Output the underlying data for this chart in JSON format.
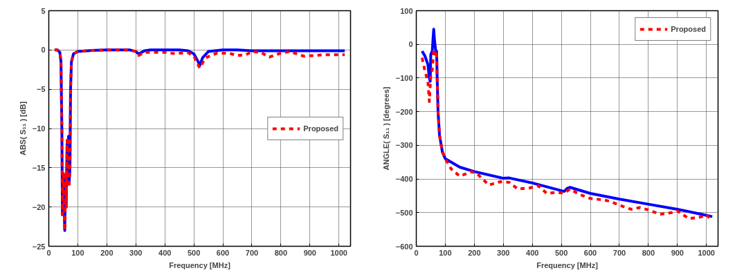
{
  "chart_data": [
    {
      "type": "line",
      "xlabel": "Frequency [MHz]",
      "ylabel": "ABS( S₁₁ ) [dB]",
      "xlim": [
        0,
        1040
      ],
      "ylim": [
        -25,
        5
      ],
      "xticks": [
        0,
        100,
        200,
        300,
        400,
        500,
        600,
        700,
        800,
        900,
        1000
      ],
      "yticks": [
        -25,
        -20,
        -15,
        -10,
        -5,
        0,
        5
      ],
      "grid": true,
      "legend": "right",
      "marker": "none",
      "series": [
        {
          "color": "#0000ff",
          "line_style": "solid",
          "x": [
            20,
            30,
            38,
            42,
            45,
            47,
            50,
            53,
            55,
            58,
            60,
            63,
            66,
            68,
            70,
            73,
            75,
            78,
            85,
            100,
            150,
            200,
            280,
            300,
            310,
            330,
            350,
            450,
            480,
            500,
            515,
            520,
            530,
            550,
            600,
            650,
            700,
            1020
          ],
          "values": [
            0,
            0,
            -0.3,
            -1.5,
            -10,
            -21,
            -16,
            -20,
            -23,
            -16,
            -20,
            -12,
            -17,
            -11,
            -17,
            -15,
            -5,
            -1.5,
            -0.5,
            -0.2,
            -0.05,
            0,
            0,
            -0.2,
            -0.5,
            -0.1,
            0,
            0,
            -0.1,
            -0.5,
            -1.5,
            -2,
            -1,
            -0.2,
            0,
            0,
            -0.1,
            -0.1
          ]
        },
        {
          "name": "Proposed",
          "color": "#ff0000",
          "line_style": "dashed",
          "x": [
            20,
            30,
            38,
            42,
            45,
            47,
            50,
            53,
            55,
            58,
            60,
            63,
            66,
            68,
            70,
            73,
            75,
            78,
            85,
            100,
            150,
            200,
            280,
            300,
            310,
            330,
            400,
            430,
            480,
            500,
            520,
            540,
            580,
            620,
            650,
            680,
            700,
            730,
            760,
            800,
            830,
            880,
            950,
            1020
          ],
          "values": [
            0,
            0,
            -0.3,
            -1.5,
            -10,
            -21,
            -15.5,
            -20,
            -23,
            -15.5,
            -20,
            -11.5,
            -17.5,
            -11.2,
            -17.5,
            -15,
            -5,
            -1.5,
            -0.5,
            -0.2,
            -0.05,
            0,
            0,
            -0.2,
            -0.7,
            -0.3,
            -0.3,
            -0.45,
            -0.35,
            -0.8,
            -2.3,
            -1,
            -0.4,
            -0.4,
            -0.7,
            -0.6,
            -0.2,
            -0.3,
            -0.9,
            -0.4,
            -0.2,
            -0.8,
            -0.6,
            -0.6
          ]
        }
      ]
    },
    {
      "type": "line",
      "xlabel": "Frequency [MHz]",
      "ylabel": "ANGLE( S₁₁ ) [degrees]",
      "xlim": [
        0,
        1040
      ],
      "ylim": [
        -600,
        100
      ],
      "xticks": [
        0,
        100,
        200,
        300,
        400,
        500,
        600,
        700,
        800,
        900,
        1000
      ],
      "yticks": [
        -600,
        -500,
        -400,
        -300,
        -200,
        -100,
        0,
        100
      ],
      "grid": true,
      "legend": "top right",
      "marker": "none",
      "series": [
        {
          "color": "#0000ff",
          "line_style": "solid",
          "x": [
            20,
            30,
            40,
            45,
            48,
            50,
            55,
            58,
            60,
            63,
            67,
            70,
            72,
            75,
            80,
            90,
            100,
            150,
            200,
            300,
            320,
            400,
            510,
            520,
            530,
            600,
            700,
            800,
            900,
            1000,
            1020
          ],
          "values": [
            -20,
            -35,
            -60,
            -100,
            -110,
            -30,
            -20,
            20,
            45,
            10,
            -20,
            -20,
            -100,
            -200,
            -270,
            -320,
            -340,
            -365,
            -378,
            -398,
            -397,
            -412,
            -437,
            -428,
            -425,
            -443,
            -460,
            -475,
            -490,
            -508,
            -512
          ]
        },
        {
          "name": "Proposed",
          "color": "#ff0000",
          "line_style": "dashed",
          "x": [
            20,
            30,
            40,
            45,
            50,
            55,
            60,
            63,
            67,
            70,
            72,
            75,
            80,
            90,
            100,
            120,
            150,
            190,
            210,
            250,
            290,
            320,
            350,
            390,
            420,
            450,
            480,
            510,
            530,
            560,
            600,
            650,
            670,
            700,
            740,
            770,
            800,
            840,
            880,
            900,
            940,
            980,
            1000,
            1020
          ],
          "values": [
            -40,
            -80,
            -110,
            -170,
            -90,
            -75,
            -20,
            -15,
            -30,
            -20,
            -100,
            -200,
            -270,
            -320,
            -340,
            -370,
            -392,
            -378,
            -385,
            -418,
            -408,
            -410,
            -430,
            -427,
            -420,
            -443,
            -440,
            -442,
            -430,
            -445,
            -458,
            -463,
            -467,
            -478,
            -490,
            -485,
            -492,
            -505,
            -500,
            -495,
            -518,
            -513,
            -506,
            -525
          ]
        }
      ]
    }
  ]
}
